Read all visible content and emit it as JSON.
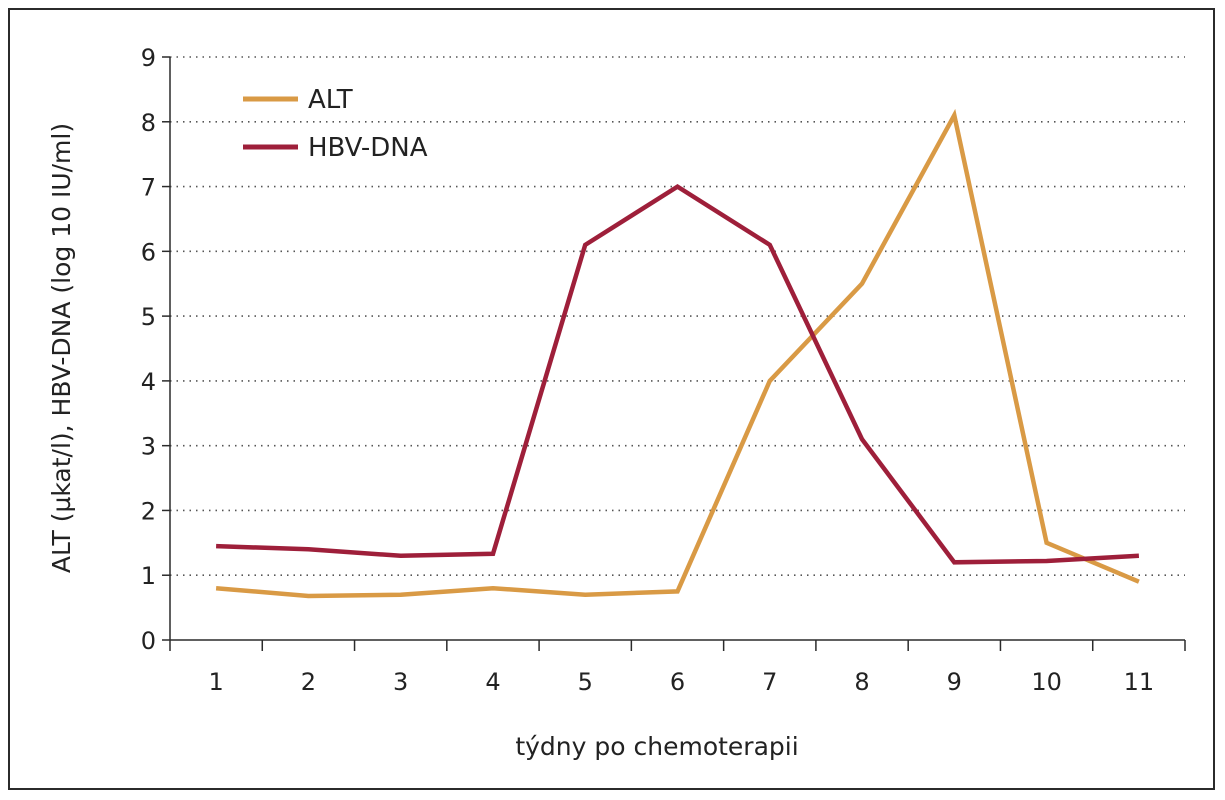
{
  "chart_data": {
    "type": "line",
    "title": "",
    "xlabel": "týdny po chemoterapii",
    "ylabel": "ALT (µkat/l), HBV-DNA (log 10 IU/ml)",
    "categories": [
      "1",
      "2",
      "3",
      "4",
      "5",
      "6",
      "7",
      "8",
      "9",
      "10",
      "11"
    ],
    "x": [
      1,
      2,
      3,
      4,
      5,
      6,
      7,
      8,
      9,
      10,
      11
    ],
    "ylim": [
      0,
      9
    ],
    "yticks": [
      "0",
      "1",
      "2",
      "3",
      "4",
      "5",
      "6",
      "7",
      "8",
      "9"
    ],
    "grid": "horizontal dotted",
    "legend_position": "top-left",
    "series": [
      {
        "name": "ALT",
        "color": "#d99a45",
        "values": [
          0.8,
          0.68,
          0.7,
          0.8,
          0.7,
          0.75,
          4.0,
          5.5,
          8.1,
          1.5,
          0.9
        ]
      },
      {
        "name": "HBV-DNA",
        "color": "#9e1f3a",
        "values": [
          1.45,
          1.4,
          1.3,
          1.33,
          6.1,
          7.0,
          6.1,
          3.1,
          1.2,
          1.22,
          1.3
        ]
      }
    ]
  }
}
